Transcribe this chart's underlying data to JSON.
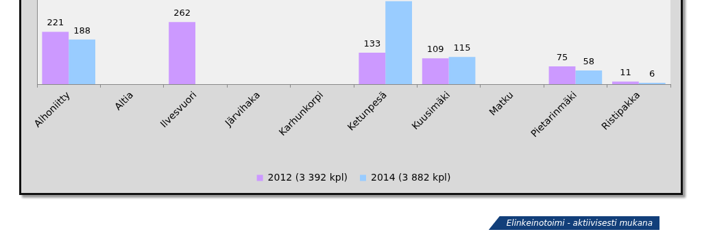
{
  "chart_data": {
    "type": "bar",
    "categories": [
      "Alhoniitty",
      "Altia",
      "Ilvesvuori",
      "Järvihaka",
      "Karhunkorpi",
      "Ketunpesä",
      "Kuusimäki",
      "Matku",
      "Pietarinmäki",
      "Ristipakka"
    ],
    "series": [
      {
        "name": "2012 (3 392 kpl)",
        "color": "#cc99ff",
        "values": [
          221,
          null,
          262,
          null,
          null,
          133,
          109,
          null,
          75,
          11
        ],
        "value_labels": [
          "221",
          null,
          "262",
          null,
          null,
          "133",
          "109",
          null,
          "75",
          "11"
        ]
      },
      {
        "name": "2014 (3 882 kpl)",
        "color": "#99ccff",
        "values": [
          188,
          null,
          null,
          null,
          null,
          350,
          115,
          null,
          58,
          6
        ],
        "value_labels": [
          "188",
          null,
          null,
          null,
          null,
          null,
          "115",
          null,
          "58",
          "6"
        ]
      }
    ],
    "ylim": [
      0,
      355
    ],
    "tick_labels": "x",
    "grid": false,
    "legend": "bottom",
    "annotations": [
      "Elinkeinotoimi - aktiivisesti mukana"
    ]
  }
}
